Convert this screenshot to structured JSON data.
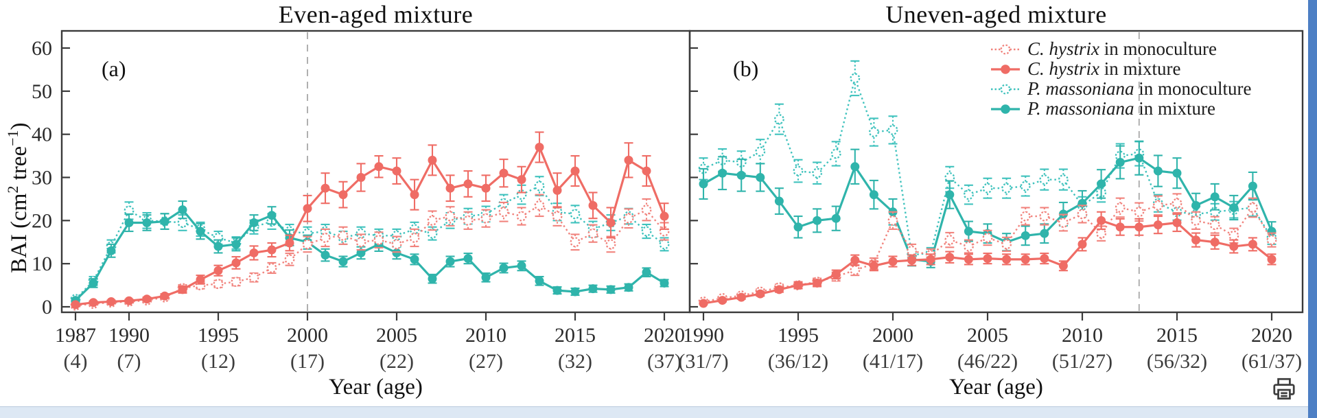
{
  "figure": {
    "ylabel_text": "BAI (cm² tree⁻¹)",
    "ylabel_parts": {
      "p1": "BAI (cm",
      "sup1": "2",
      "p2": " tree",
      "sup2": "−1",
      "p3": ")"
    }
  },
  "icons": {
    "print": "printer-icon"
  },
  "colors": {
    "red": "#ef6c65",
    "red_mono": "#f1837d",
    "teal": "#2fb4ab",
    "teal_mono": "#3fc2bd",
    "axis": "#3a3a3a",
    "ref_line": "#b0b0b0",
    "text": "#1c1c1c",
    "window_edge": "#4d7fc4",
    "bottom_strip": "#dde8f4"
  },
  "legend": [
    {
      "species": "C. hystrix",
      "rest": " in monoculture",
      "color": "#f1837d",
      "marker": "open",
      "line": "dotted"
    },
    {
      "species": "C. hystrix",
      "rest": " in mixture",
      "color": "#ef6c65",
      "marker": "filled",
      "line": "solid"
    },
    {
      "species": "P. massoniana",
      "rest": " in monoculture",
      "color": "#3fc2bd",
      "marker": "open",
      "line": "dotted"
    },
    {
      "species": "P. massoniana",
      "rest": " in mixture",
      "color": "#2fb4ab",
      "marker": "filled",
      "line": "solid"
    }
  ],
  "chart_data": [
    {
      "type": "line",
      "panel_label": "(a)",
      "title": "Even-aged mixture",
      "xlabel": "Year (age)",
      "ylabel": "BAI (cm² tree⁻¹)",
      "ylim": [
        0,
        60
      ],
      "yticks": [
        0,
        10,
        20,
        30,
        40,
        50,
        60
      ],
      "grid": false,
      "x_first_year": 1987,
      "ref_line_year": 2000,
      "xticks": [
        {
          "year": 1987,
          "age": "(4)"
        },
        {
          "year": 1990,
          "age": "(7)"
        },
        {
          "year": 1995,
          "age": "(12)"
        },
        {
          "year": 2000,
          "age": "(17)"
        },
        {
          "year": 2005,
          "age": "(22)"
        },
        {
          "year": 2010,
          "age": "(27)"
        },
        {
          "year": 2015,
          "age": "(32)"
        },
        {
          "year": 2020,
          "age": "(37)"
        }
      ],
      "series": [
        {
          "name": "C. hystrix in monoculture",
          "color": "#f1837d",
          "marker": "open",
          "line": "dotted",
          "values": [
            0.3,
            0.7,
            1.0,
            1.2,
            1.5,
            2.2,
            4.3,
            5.0,
            5.3,
            5.8,
            6.8,
            9.0,
            11.0,
            14.5,
            16.0,
            16.5,
            15.0,
            15.5,
            14.5,
            16.0,
            20.0,
            21.0,
            20.0,
            20.5,
            22.0,
            21.0,
            23.5,
            21.0,
            15.0,
            17.0,
            14.5,
            20.5,
            22.5,
            17.5
          ],
          "errors": [
            0.2,
            0.3,
            0.3,
            0.3,
            0.4,
            0.5,
            0.8,
            0.8,
            0.8,
            0.9,
            1,
            1.2,
            1.4,
            1.8,
            2,
            2,
            1.8,
            1.8,
            1.8,
            2,
            2.2,
            2.2,
            2,
            2,
            2.2,
            2,
            2.5,
            2.2,
            1.8,
            2,
            1.8,
            2.2,
            2.5,
            2
          ]
        },
        {
          "name": "C. hystrix in mixture",
          "color": "#ef6c65",
          "marker": "filled",
          "line": "solid",
          "values": [
            0.5,
            1.0,
            1.2,
            1.4,
            1.8,
            2.5,
            4.0,
            6.3,
            8.4,
            10.2,
            12.5,
            13.2,
            14.8,
            22.8,
            27.5,
            26.0,
            30.0,
            32.5,
            31.5,
            26.0,
            34.0,
            27.5,
            28.5,
            27.5,
            31.0,
            29.5,
            37.0,
            27.0,
            31.5,
            23.5,
            19.5,
            34.0,
            31.5,
            21.0
          ],
          "errors": [
            0.2,
            0.3,
            0.3,
            0.3,
            0.4,
            0.5,
            0.8,
            1,
            1.2,
            1.4,
            1.6,
            1.6,
            1.8,
            3,
            3.5,
            3,
            3.2,
            2.5,
            3,
            3.5,
            3.5,
            3,
            3,
            3,
            3.2,
            3,
            3.5,
            4,
            3.5,
            3,
            3.5,
            4,
            3.5,
            3
          ]
        },
        {
          "name": "P. massoniana in monoculture",
          "color": "#3fc2bd",
          "marker": "open",
          "line": "dotted",
          "values": [
            1.8,
            6.0,
            14.0,
            22.3,
            20.0,
            19.8,
            19.5,
            18.0,
            16.0,
            14.8,
            18.5,
            19.8,
            17.5,
            17.0,
            17.5,
            16.0,
            17.0,
            16.5,
            16.5,
            18.0,
            17.0,
            20.0,
            21.0,
            21.5,
            24.0,
            26.0,
            28.0,
            22.0,
            21.5,
            18.0,
            19.5,
            21.0,
            17.5,
            14.5
          ],
          "errors": [
            0.4,
            1,
            1.5,
            2,
            1.8,
            1.8,
            1.8,
            1.6,
            1.5,
            1.4,
            1.6,
            1.8,
            1.6,
            1.5,
            1.6,
            1.5,
            1.5,
            1.5,
            1.5,
            1.6,
            1.5,
            1.8,
            1.8,
            1.8,
            2,
            2.2,
            2.2,
            2,
            2,
            1.8,
            1.8,
            1.8,
            1.6,
            1.5
          ]
        },
        {
          "name": "P. massoniana in mixture",
          "color": "#2fb4ab",
          "marker": "filled",
          "line": "solid",
          "values": [
            1.5,
            5.5,
            13.0,
            19.5,
            19.5,
            19.8,
            22.5,
            17.5,
            14.0,
            14.5,
            19.5,
            21.2,
            16.0,
            15.0,
            12.0,
            10.5,
            12.5,
            14.5,
            12.5,
            11.0,
            6.5,
            10.5,
            11.2,
            6.8,
            9.0,
            9.5,
            6.0,
            3.8,
            3.5,
            4.2,
            4.0,
            4.5,
            8.0,
            5.5
          ],
          "errors": [
            0.4,
            1,
            1.5,
            2,
            1.8,
            1.8,
            2,
            1.8,
            1.5,
            1.5,
            1.8,
            2,
            1.8,
            1.6,
            1.4,
            1.2,
            1.4,
            1.6,
            1.4,
            1.2,
            1,
            1.2,
            1.2,
            1,
            1.1,
            1.1,
            1,
            0.8,
            0.8,
            0.8,
            0.8,
            0.8,
            1,
            0.8
          ]
        }
      ]
    },
    {
      "type": "line",
      "panel_label": "(b)",
      "title": "Uneven-aged mixture",
      "xlabel": "Year (age)",
      "ylabel": "BAI (cm² tree⁻¹)",
      "ylim": [
        0,
        60
      ],
      "yticks": [
        0,
        10,
        20,
        30,
        40,
        50,
        60
      ],
      "grid": false,
      "x_first_year": 1990,
      "ref_line_year": 2013,
      "xticks": [
        {
          "year": 1990,
          "age": "(31/7)"
        },
        {
          "year": 1995,
          "age": "(36/12)"
        },
        {
          "year": 2000,
          "age": "(41/17)"
        },
        {
          "year": 2005,
          "age": "(46/22)"
        },
        {
          "year": 2010,
          "age": "(51/27)"
        },
        {
          "year": 2015,
          "age": "(56/32)"
        },
        {
          "year": 2020,
          "age": "(61/37)"
        }
      ],
      "series": [
        {
          "name": "C. hystrix in monoculture",
          "color": "#f1837d",
          "marker": "open",
          "line": "dotted",
          "values": [
            1.2,
            2.0,
            2.6,
            3.5,
            4.5,
            5.0,
            5.8,
            7.0,
            8.5,
            10.0,
            20.0,
            13.0,
            12.0,
            15.5,
            14.0,
            16.0,
            14.5,
            21.0,
            21.0,
            19.5,
            21.5,
            17.0,
            23.0,
            22.0,
            23.5,
            24.0,
            20.0,
            19.0,
            16.5,
            23.0,
            15.5
          ],
          "errors": [
            0.3,
            0.4,
            0.5,
            0.6,
            0.7,
            0.8,
            0.8,
            1,
            1.2,
            1.3,
            2,
            1.5,
            1.4,
            1.7,
            1.5,
            1.7,
            1.6,
            2,
            2,
            1.9,
            2,
            1.7,
            2.2,
            2.1,
            2.2,
            2.2,
            2,
            1.9,
            1.7,
            2.2,
            1.6
          ]
        },
        {
          "name": "C. hystrix in mixture",
          "color": "#ef6c65",
          "marker": "filled",
          "line": "solid",
          "values": [
            0.8,
            1.5,
            2.2,
            3.0,
            4.0,
            5.0,
            5.5,
            7.5,
            10.8,
            9.5,
            10.5,
            10.8,
            11.0,
            11.5,
            11.0,
            11.2,
            11.0,
            11.0,
            11.2,
            9.5,
            14.5,
            20.0,
            18.5,
            18.5,
            19.0,
            19.5,
            15.5,
            15.0,
            14.0,
            14.5,
            11.0
          ],
          "errors": [
            0.2,
            0.3,
            0.4,
            0.5,
            0.6,
            0.7,
            0.8,
            1,
            1.2,
            1.1,
            1.2,
            1.2,
            1.2,
            1.3,
            1.2,
            1.2,
            1.2,
            1.2,
            1.2,
            1.1,
            1.5,
            2,
            1.9,
            1.9,
            2,
            2,
            1.6,
            1.6,
            1.5,
            1.5,
            1.2
          ]
        },
        {
          "name": "P. massoniana in monoculture",
          "color": "#3fc2bd",
          "marker": "open",
          "line": "dotted",
          "values": [
            32.0,
            34.0,
            33.5,
            36.0,
            43.5,
            31.5,
            31.0,
            35.5,
            53.0,
            40.5,
            41.0,
            12.0,
            12.5,
            30.0,
            26.0,
            27.5,
            27.5,
            28.0,
            29.5,
            29.5,
            23.5,
            26.5,
            35.0,
            35.5,
            24.0,
            22.0,
            21.5,
            22.0,
            22.5,
            23.0,
            16.0
          ],
          "errors": [
            2.5,
            2.6,
            2.6,
            2.8,
            3.5,
            2.6,
            2.5,
            2.8,
            4,
            3.2,
            3.2,
            1.2,
            1.2,
            2.5,
            2.2,
            2.3,
            2.3,
            2.3,
            2.4,
            2.4,
            2,
            2.2,
            2.8,
            2.8,
            2,
            1.9,
            1.8,
            1.9,
            1.9,
            2,
            1.5
          ]
        },
        {
          "name": "P. massoniana in mixture",
          "color": "#2fb4ab",
          "marker": "filled",
          "line": "solid",
          "values": [
            28.5,
            31.0,
            30.5,
            30.0,
            24.5,
            18.5,
            20.0,
            20.5,
            32.5,
            26.0,
            22.0,
            11.0,
            10.5,
            26.0,
            17.5,
            17.0,
            15.0,
            16.5,
            17.0,
            21.5,
            24.0,
            28.5,
            33.5,
            34.5,
            31.5,
            31.0,
            23.5,
            25.5,
            23.0,
            28.0,
            17.5
          ],
          "errors": [
            3.5,
            3.8,
            3.7,
            3.2,
            3,
            2.5,
            2.7,
            2.8,
            4,
            3.3,
            3,
            1.5,
            1.4,
            3.2,
            2.3,
            2.2,
            2,
            2.2,
            2.2,
            2.7,
            2.9,
            3.3,
            3.8,
            3.9,
            3.6,
            3.5,
            2.8,
            3,
            2.8,
            3.2,
            2.2
          ]
        }
      ]
    }
  ]
}
